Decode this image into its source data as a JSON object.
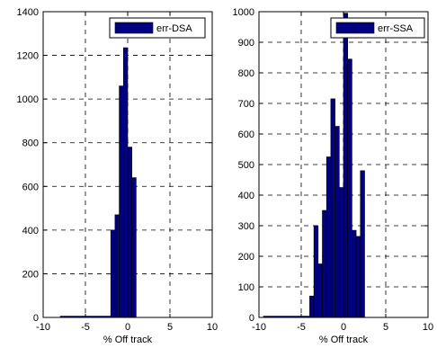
{
  "chart_data": [
    {
      "type": "bar",
      "subtype": "histogram",
      "xlabel": "% Off track",
      "ylabel": "",
      "xlim": [
        -10,
        10
      ],
      "ylim": [
        0,
        1400
      ],
      "xticks": [
        -10,
        -5,
        0,
        5,
        10
      ],
      "yticks": [
        0,
        200,
        400,
        600,
        800,
        1000,
        1200,
        1400
      ],
      "grid": "dashed",
      "legend": {
        "position": "top-right",
        "entries": [
          "err-DSA"
        ]
      },
      "bin_width": 0.5,
      "series": [
        {
          "name": "err-DSA",
          "bin_left_edges": [
            -2,
            -1.5,
            -1,
            -0.5,
            0,
            0.5,
            1,
            1.5
          ],
          "values": [
            400,
            470,
            1060,
            1235,
            780,
            640,
            0,
            0
          ]
        }
      ],
      "colors": {
        "bar_fill": "#000080",
        "bar_edge": "#000000"
      }
    },
    {
      "type": "bar",
      "subtype": "histogram",
      "xlabel": "% Off track",
      "ylabel": "",
      "xlim": [
        -10,
        10
      ],
      "ylim": [
        0,
        1000
      ],
      "xticks": [
        -10,
        -5,
        0,
        5,
        10
      ],
      "yticks": [
        0,
        100,
        200,
        300,
        400,
        500,
        600,
        700,
        800,
        900,
        1000
      ],
      "grid": "dashed",
      "legend": {
        "position": "top-right",
        "entries": [
          "err-SSA"
        ]
      },
      "bin_width": 0.5,
      "series": [
        {
          "name": "err-SSA",
          "bin_left_edges": [
            -4,
            -3.5,
            -3,
            -2.5,
            -2,
            -1.5,
            -1,
            -0.5,
            0,
            0.5,
            1,
            1.5,
            2,
            2.5
          ],
          "values": [
            70,
            300,
            175,
            350,
            525,
            715,
            625,
            425,
            995,
            845,
            285,
            265,
            480,
            0
          ]
        }
      ],
      "colors": {
        "bar_fill": "#000080",
        "bar_edge": "#000000"
      }
    }
  ]
}
